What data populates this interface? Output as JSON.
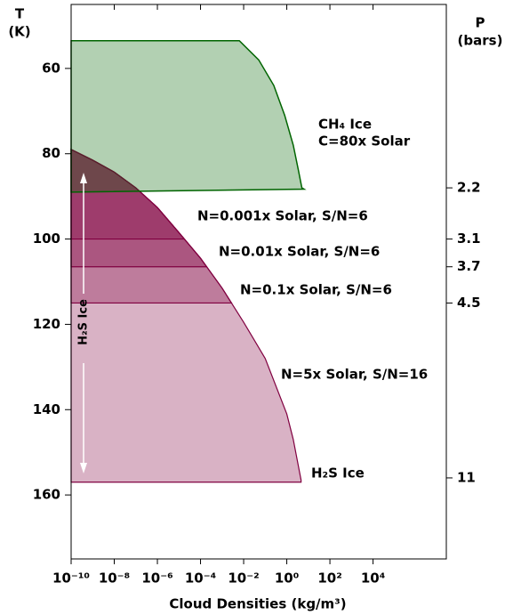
{
  "chart_data": {
    "type": "region",
    "xlabel": "Cloud Densities (kg/m³)",
    "ylabel_lines": [
      "T",
      "(K)"
    ],
    "y2label_lines": [
      "P",
      "(bars)"
    ],
    "xscale": "log",
    "xlim": [
      1e-10,
      25000000.0
    ],
    "xticks": [
      {
        "value": 1e-10,
        "label": "10⁻¹⁰"
      },
      {
        "value": 1e-08,
        "label": "10⁻⁸"
      },
      {
        "value": 1e-06,
        "label": "10⁻⁶"
      },
      {
        "value": 0.0001,
        "label": "10⁻⁴"
      },
      {
        "value": 0.01,
        "label": "10⁻²"
      },
      {
        "value": 1,
        "label": "10⁰"
      },
      {
        "value": 100,
        "label": "10²"
      },
      {
        "value": 10000,
        "label": "10⁴"
      }
    ],
    "ylim": [
      45,
      175
    ],
    "y_inverted": true,
    "yticks": [
      60,
      80,
      100,
      120,
      140,
      160
    ],
    "pressure_ticks": [
      {
        "temperature": 88,
        "pressure": 2.2
      },
      {
        "temperature": 100,
        "pressure": 3.1
      },
      {
        "temperature": 106.5,
        "pressure": 3.7
      },
      {
        "temperature": 115,
        "pressure": 4.5
      },
      {
        "temperature": 156,
        "pressure": 11
      }
    ],
    "ch4_region": {
      "name_lines": [
        "CH₄ Ice",
        "C=80x Solar"
      ],
      "color": "#006400",
      "x": [
        1e-10,
        0.0063,
        0.05,
        0.25,
        0.8,
        2,
        3.5,
        5,
        6.3,
        1e-10
      ],
      "t": [
        53.5,
        53.5,
        58,
        64,
        71,
        78,
        84,
        88,
        88.3,
        89
      ]
    },
    "h2s_curve": {
      "x": [
        1e-10,
        1e-09,
        1e-08,
        1e-07,
        1e-06,
        1e-05,
        0.0001,
        0.001,
        0.01,
        0.1,
        1,
        2,
        4.6
      ],
      "t": [
        79,
        81.5,
        84.3,
        88,
        92.6,
        98.5,
        104.5,
        111.5,
        119.5,
        128,
        141,
        147,
        156.5
      ]
    },
    "h2s_label": "H₂S Ice",
    "arrow_label": "H₂S Ice",
    "series": [
      {
        "name": "N=0.001x Solar, S/N=6",
        "color": "#800040",
        "base_t": 100
      },
      {
        "name": "N=0.01x Solar, S/N=6",
        "color": "#800040",
        "base_t": 106.5
      },
      {
        "name": "N=0.1x Solar, S/N=6",
        "color": "#800040",
        "base_t": 115
      },
      {
        "name": "N=5x Solar, S/N=16",
        "color": "#800040",
        "base_t": 157
      }
    ]
  }
}
